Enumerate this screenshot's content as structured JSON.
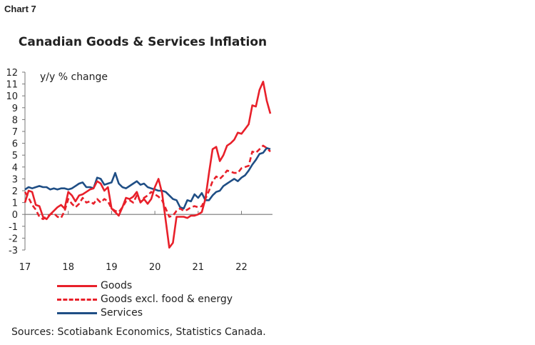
{
  "header": {
    "chart_label": "Chart 7"
  },
  "chart_data": {
    "type": "line",
    "title": "Canadian Goods & Services Inflation",
    "ylabel": "y/y % change",
    "xlabel": "",
    "ylim": [
      -3,
      12
    ],
    "yticks": [
      12,
      11,
      10,
      9,
      8,
      7,
      6,
      5,
      4,
      3,
      2,
      1,
      0,
      -1,
      -2,
      -3
    ],
    "xticks": [
      "17",
      "18",
      "19",
      "20",
      "21",
      "22"
    ],
    "x_start": "2017-01",
    "frequency": "monthly",
    "grid": false,
    "legend": "bottom",
    "series": [
      {
        "name": "Goods",
        "color": "#e8202a",
        "style": "solid",
        "values": [
          1.0,
          2.0,
          1.9,
          0.8,
          0.7,
          -0.2,
          -0.4,
          0.0,
          0.3,
          0.6,
          0.8,
          0.5,
          1.9,
          1.6,
          1.1,
          1.6,
          1.7,
          1.9,
          2.1,
          2.2,
          2.8,
          2.6,
          2.0,
          2.3,
          0.5,
          0.2,
          -0.1,
          0.6,
          1.4,
          1.3,
          1.5,
          1.9,
          1.0,
          1.3,
          0.9,
          1.3,
          2.3,
          3.0,
          1.8,
          -0.5,
          -2.8,
          -2.4,
          -0.2,
          -0.2,
          -0.2,
          -0.3,
          -0.1,
          -0.1,
          0.0,
          0.2,
          1.3,
          3.5,
          5.5,
          5.7,
          4.5,
          5.0,
          5.8,
          6.0,
          6.3,
          6.9,
          6.8,
          7.2,
          7.6,
          9.2,
          9.1,
          10.5,
          11.2,
          9.6,
          8.5
        ]
      },
      {
        "name": "Goods excl. food & energy",
        "color": "#e8202a",
        "style": "dashed",
        "values": [
          1.9,
          1.4,
          0.8,
          0.4,
          -0.2,
          -0.4,
          -0.2,
          0.0,
          0.1,
          -0.2,
          -0.3,
          0.3,
          1.3,
          0.9,
          0.6,
          0.9,
          1.4,
          1.0,
          1.1,
          0.9,
          1.3,
          1.0,
          1.3,
          1.1,
          0.5,
          0.3,
          0.2,
          0.6,
          1.1,
          1.2,
          1.0,
          1.6,
          1.1,
          1.4,
          1.6,
          1.9,
          1.7,
          1.5,
          1.2,
          0.5,
          -0.2,
          -0.1,
          0.3,
          0.5,
          0.3,
          0.4,
          0.6,
          0.7,
          0.6,
          0.7,
          1.3,
          2.0,
          2.8,
          3.2,
          3.0,
          3.3,
          3.7,
          3.6,
          3.5,
          3.5,
          3.9,
          4.0,
          4.1,
          5.3,
          5.2,
          5.5,
          5.8,
          5.6,
          5.3
        ]
      },
      {
        "name": "Services",
        "color": "#1f4e85",
        "style": "solid",
        "values": [
          2.1,
          2.3,
          2.2,
          2.3,
          2.4,
          2.3,
          2.3,
          2.1,
          2.2,
          2.1,
          2.2,
          2.2,
          2.1,
          2.2,
          2.4,
          2.6,
          2.7,
          2.3,
          2.3,
          2.2,
          3.1,
          3.0,
          2.5,
          2.6,
          2.7,
          3.5,
          2.6,
          2.3,
          2.2,
          2.4,
          2.6,
          2.8,
          2.5,
          2.6,
          2.3,
          2.2,
          2.1,
          2.0,
          2.0,
          1.9,
          1.6,
          1.3,
          1.2,
          0.6,
          0.5,
          1.2,
          1.1,
          1.7,
          1.4,
          1.8,
          1.2,
          1.2,
          1.6,
          1.9,
          2.0,
          2.4,
          2.6,
          2.8,
          3.0,
          2.8,
          3.1,
          3.3,
          3.7,
          4.2,
          4.6,
          5.1,
          5.2,
          5.6,
          5.5
        ]
      }
    ]
  },
  "footer": {
    "sources": "Sources: Scotiabank Economics, Statistics Canada."
  }
}
